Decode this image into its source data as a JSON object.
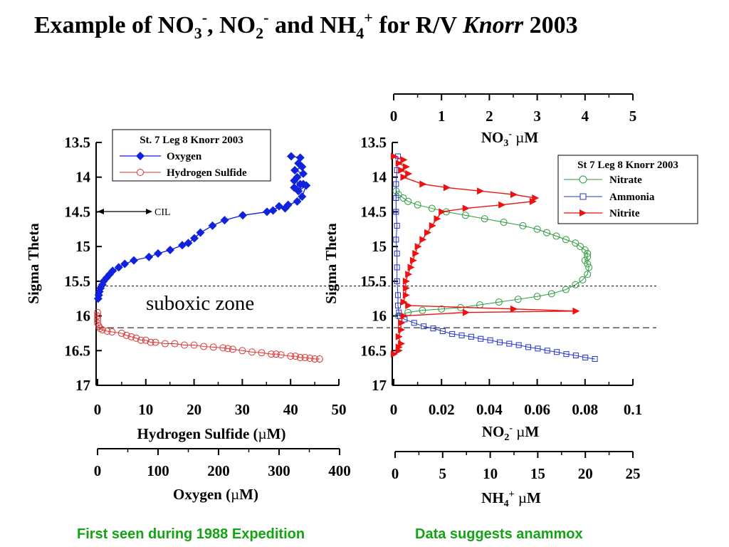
{
  "slide": {
    "title_parts": {
      "p1": "Example of NO",
      "p1_sub": "3",
      "p1_sup": "-",
      "p2": ", NO",
      "p2_sub": "2",
      "p2_sup": "-",
      "p3": " and NH",
      "p3_sub": "4",
      "p3_sup": "+",
      "p4": " for R/V ",
      "p4_italic": "Knorr",
      "p5": " 2003"
    },
    "caption_left": "First seen during 1988 Expedition",
    "caption_right": "Data suggests anammox",
    "colors": {
      "caption": "#13a313",
      "oxygen": "#1122dd",
      "h2s": "#dd3333",
      "nitrate": "#2a9a3a",
      "ammonia": "#2233cc",
      "nitrite": "#ee1111"
    }
  },
  "chart_data": [
    {
      "type": "line",
      "panel": "left",
      "ylabel": "Sigma Theta",
      "ylim": [
        13.5,
        17
      ],
      "y_reversed": true,
      "yticks": [
        "13.5",
        "14",
        "14.5",
        "15",
        "15.5",
        "16",
        "16.5",
        "17"
      ],
      "axes": [
        {
          "label_main": "Hydrogen Sulfide (",
          "label_mu": "µ",
          "label_tail": "M)",
          "range": [
            0,
            50
          ],
          "ticks": [
            "0",
            "10",
            "20",
            "30",
            "40",
            "50"
          ],
          "position": "bottom"
        },
        {
          "label_main": "Oxygen (",
          "label_mu": "µ",
          "label_tail": "M)",
          "range": [
            0,
            400
          ],
          "ticks": [
            "0",
            "100",
            "200",
            "300",
            "400"
          ],
          "position": "bottom-secondary"
        }
      ],
      "legend": {
        "title": "St. 7 Leg 8 Knorr 2003",
        "placement": "top-right"
      },
      "annotations": {
        "cil": "CIL",
        "zone": "suboxic zone"
      },
      "reference_lines_sigma": [
        15.57,
        16.17
      ],
      "series": [
        {
          "name": "Oxygen",
          "axis": "Oxygen",
          "color": "#1122dd",
          "marker": "diamond-filled",
          "x": [
            320,
            335,
            332,
            338,
            326,
            340,
            330,
            325,
            335,
            325,
            340,
            332,
            345,
            338,
            330,
            315,
            310,
            300,
            290,
            280,
            240,
            210,
            190,
            170,
            160,
            150,
            140,
            120,
            100,
            85,
            60,
            45,
            35,
            25,
            20,
            15,
            10,
            8,
            5,
            3,
            2,
            1
          ],
          "y": [
            13.7,
            13.72,
            13.8,
            13.85,
            13.9,
            13.95,
            14.0,
            14.05,
            14.1,
            14.15,
            14.1,
            14.2,
            14.12,
            14.28,
            14.35,
            14.4,
            14.45,
            14.42,
            14.48,
            14.5,
            14.55,
            14.62,
            14.7,
            14.8,
            14.88,
            14.95,
            14.98,
            15.05,
            15.1,
            15.15,
            15.2,
            15.25,
            15.3,
            15.35,
            15.4,
            15.45,
            15.5,
            15.55,
            15.6,
            15.65,
            15.7,
            15.75
          ]
        },
        {
          "name": "Hydrogen Sulfide",
          "axis": "Hydrogen Sulfide",
          "color": "#dd3333",
          "marker": "circle-open",
          "x": [
            0,
            0,
            0,
            0,
            0.3,
            0.5,
            1,
            2,
            3,
            5,
            6,
            7,
            8,
            9,
            10,
            11,
            12,
            14,
            16,
            18,
            20,
            22,
            24,
            26,
            27,
            28,
            30,
            32,
            34,
            36,
            37,
            38,
            40,
            41,
            42,
            43,
            44,
            45,
            46
          ],
          "y": [
            15.95,
            16.0,
            16.05,
            16.1,
            16.15,
            16.18,
            16.2,
            16.22,
            16.23,
            16.25,
            16.28,
            16.3,
            16.32,
            16.35,
            16.35,
            16.38,
            16.38,
            16.4,
            16.4,
            16.42,
            16.42,
            16.44,
            16.45,
            16.46,
            16.47,
            16.48,
            16.5,
            16.52,
            16.53,
            16.55,
            16.55,
            16.56,
            16.58,
            16.58,
            16.6,
            16.6,
            16.61,
            16.62,
            16.62
          ]
        }
      ]
    },
    {
      "type": "line",
      "panel": "right",
      "ylabel": "Sigma Theta",
      "ylim": [
        13.5,
        17
      ],
      "y_reversed": true,
      "yticks": [
        "13.5",
        "14",
        "14.5",
        "15",
        "15.5",
        "16",
        "16.5",
        "17"
      ],
      "axes": [
        {
          "label_main": "NO",
          "label_sub": "3",
          "label_sup": "-",
          "label_mu": "µ",
          "label_tail": "M",
          "range": [
            0,
            5
          ],
          "ticks": [
            "0",
            "1",
            "2",
            "3",
            "4",
            "5"
          ],
          "position": "top"
        },
        {
          "label_main": "NO",
          "label_sub": "2",
          "label_sup": "-",
          "label_mu": "µ",
          "label_tail": "M",
          "range": [
            0,
            0.1
          ],
          "ticks": [
            "0",
            "0.02",
            "0.04",
            "0.06",
            "0.08",
            "0.1"
          ],
          "position": "bottom"
        },
        {
          "label_main": "NH",
          "label_sub": "4",
          "label_sup": "+",
          "label_mu": "µ",
          "label_tail": "M",
          "range": [
            0,
            25
          ],
          "ticks": [
            "0",
            "5",
            "10",
            "15",
            "20",
            "25"
          ],
          "position": "bottom-secondary"
        }
      ],
      "legend": {
        "title": "St 7 Leg 8 Knorr 2003",
        "placement": "top-right"
      },
      "series": [
        {
          "name": "Nitrate",
          "axis": "NO3",
          "color": "#2a9a3a",
          "marker": "circle-open",
          "x": [
            0.05,
            0.1,
            0.2,
            0.3,
            0.5,
            0.8,
            1.1,
            1.5,
            1.9,
            2.3,
            2.7,
            3.0,
            3.2,
            3.4,
            3.6,
            3.8,
            3.9,
            4.0,
            4.05,
            4.05,
            4.0,
            4.05,
            4.08,
            4.05,
            3.95,
            3.8,
            3.6,
            3.3,
            3.0,
            2.6,
            2.2,
            1.8,
            1.4,
            1.0,
            0.6,
            0.3,
            0.1
          ],
          "y": [
            14.2,
            14.25,
            14.3,
            14.35,
            14.4,
            14.45,
            14.5,
            14.55,
            14.6,
            14.65,
            14.7,
            14.75,
            14.8,
            14.85,
            14.9,
            14.95,
            15.0,
            15.05,
            15.1,
            15.15,
            15.2,
            15.25,
            15.3,
            15.4,
            15.48,
            15.55,
            15.62,
            15.68,
            15.72,
            15.76,
            15.8,
            15.84,
            15.88,
            15.9,
            15.92,
            15.95,
            16.0
          ]
        },
        {
          "name": "Ammonia",
          "axis": "NH4",
          "color": "#2233cc",
          "marker": "square-open",
          "x": [
            0.3,
            0.2,
            0.1,
            0.1,
            0.1,
            0.2,
            0.1,
            0.2,
            0.2,
            0.2,
            0.3,
            0.3,
            0.4,
            0.5,
            1.0,
            2.0,
            3.0,
            4.0,
            5.0,
            6.0,
            7.0,
            8.0,
            9.0,
            10.0,
            11.0,
            12.0,
            13.0,
            14.0,
            15.0,
            16.0,
            17.0,
            18.0,
            19.0,
            20.0,
            21.0
          ],
          "y": [
            13.7,
            13.9,
            14.1,
            14.3,
            14.5,
            14.7,
            14.9,
            15.1,
            15.3,
            15.5,
            15.7,
            15.85,
            15.95,
            16.0,
            16.05,
            16.1,
            16.15,
            16.18,
            16.22,
            16.26,
            16.28,
            16.3,
            16.33,
            16.35,
            16.38,
            16.4,
            16.42,
            16.45,
            16.47,
            16.5,
            16.52,
            16.55,
            16.57,
            16.6,
            16.62
          ]
        },
        {
          "name": "Nitrite",
          "axis": "NO2",
          "color": "#ee1111",
          "marker": "triangle-right",
          "x": [
            0.0,
            0.004,
            0.002,
            0.005,
            0.003,
            0.006,
            0.004,
            0.012,
            0.022,
            0.036,
            0.05,
            0.059,
            0.058,
            0.045,
            0.03,
            0.02,
            0.018,
            0.016,
            0.014,
            0.012,
            0.01,
            0.009,
            0.008,
            0.007,
            0.006,
            0.005,
            0.005,
            0.005,
            0.004,
            0.006,
            0.05,
            0.076,
            0.03,
            0.004,
            0.003,
            0.003,
            0.002,
            0.003,
            0.002,
            0.002,
            0.0
          ],
          "y": [
            13.7,
            13.75,
            13.8,
            13.85,
            13.9,
            13.95,
            14.0,
            14.1,
            14.15,
            14.2,
            14.25,
            14.3,
            14.35,
            14.4,
            14.45,
            14.5,
            14.6,
            14.7,
            14.8,
            14.9,
            15.0,
            15.1,
            15.2,
            15.3,
            15.4,
            15.5,
            15.6,
            15.7,
            15.8,
            15.85,
            15.9,
            15.93,
            15.95,
            16.0,
            16.1,
            16.2,
            16.3,
            16.4,
            16.45,
            16.5,
            16.55
          ]
        }
      ]
    }
  ]
}
